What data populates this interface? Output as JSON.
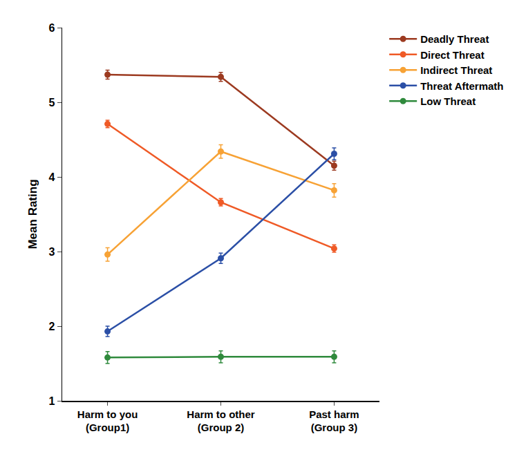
{
  "chart_data": {
    "type": "line",
    "y_label": "Mean Rating",
    "categories": [
      "Harm to you\n(Group1)",
      "Harm to other\n(Group 2)",
      "Past harm\n(Group 3)"
    ],
    "series": [
      {
        "name": "Deadly Threat",
        "color": "#9c3a20",
        "values": [
          5.37,
          5.34,
          4.15
        ],
        "errors": [
          0.06,
          0.06,
          0.06
        ]
      },
      {
        "name": "Direct Threat",
        "color": "#ef5a26",
        "values": [
          4.71,
          3.66,
          3.04
        ],
        "errors": [
          0.05,
          0.05,
          0.05
        ]
      },
      {
        "name": "Indirect Threat",
        "color": "#f7a235",
        "values": [
          2.96,
          4.34,
          3.82
        ],
        "errors": [
          0.09,
          0.09,
          0.09
        ]
      },
      {
        "name": "Threat Aftermath",
        "color": "#2b4fa6",
        "values": [
          1.93,
          2.91,
          4.31
        ],
        "errors": [
          0.07,
          0.07,
          0.08
        ]
      },
      {
        "name": "Low Threat",
        "color": "#2f8a3c",
        "values": [
          1.58,
          1.59,
          1.59
        ],
        "errors": [
          0.08,
          0.08,
          0.08
        ]
      }
    ],
    "ylim": [
      1,
      6
    ],
    "yticks": [
      1,
      2,
      3,
      4,
      5,
      6
    ],
    "grid": false,
    "legend": "right",
    "marker": "circle",
    "line_style": "solid"
  }
}
